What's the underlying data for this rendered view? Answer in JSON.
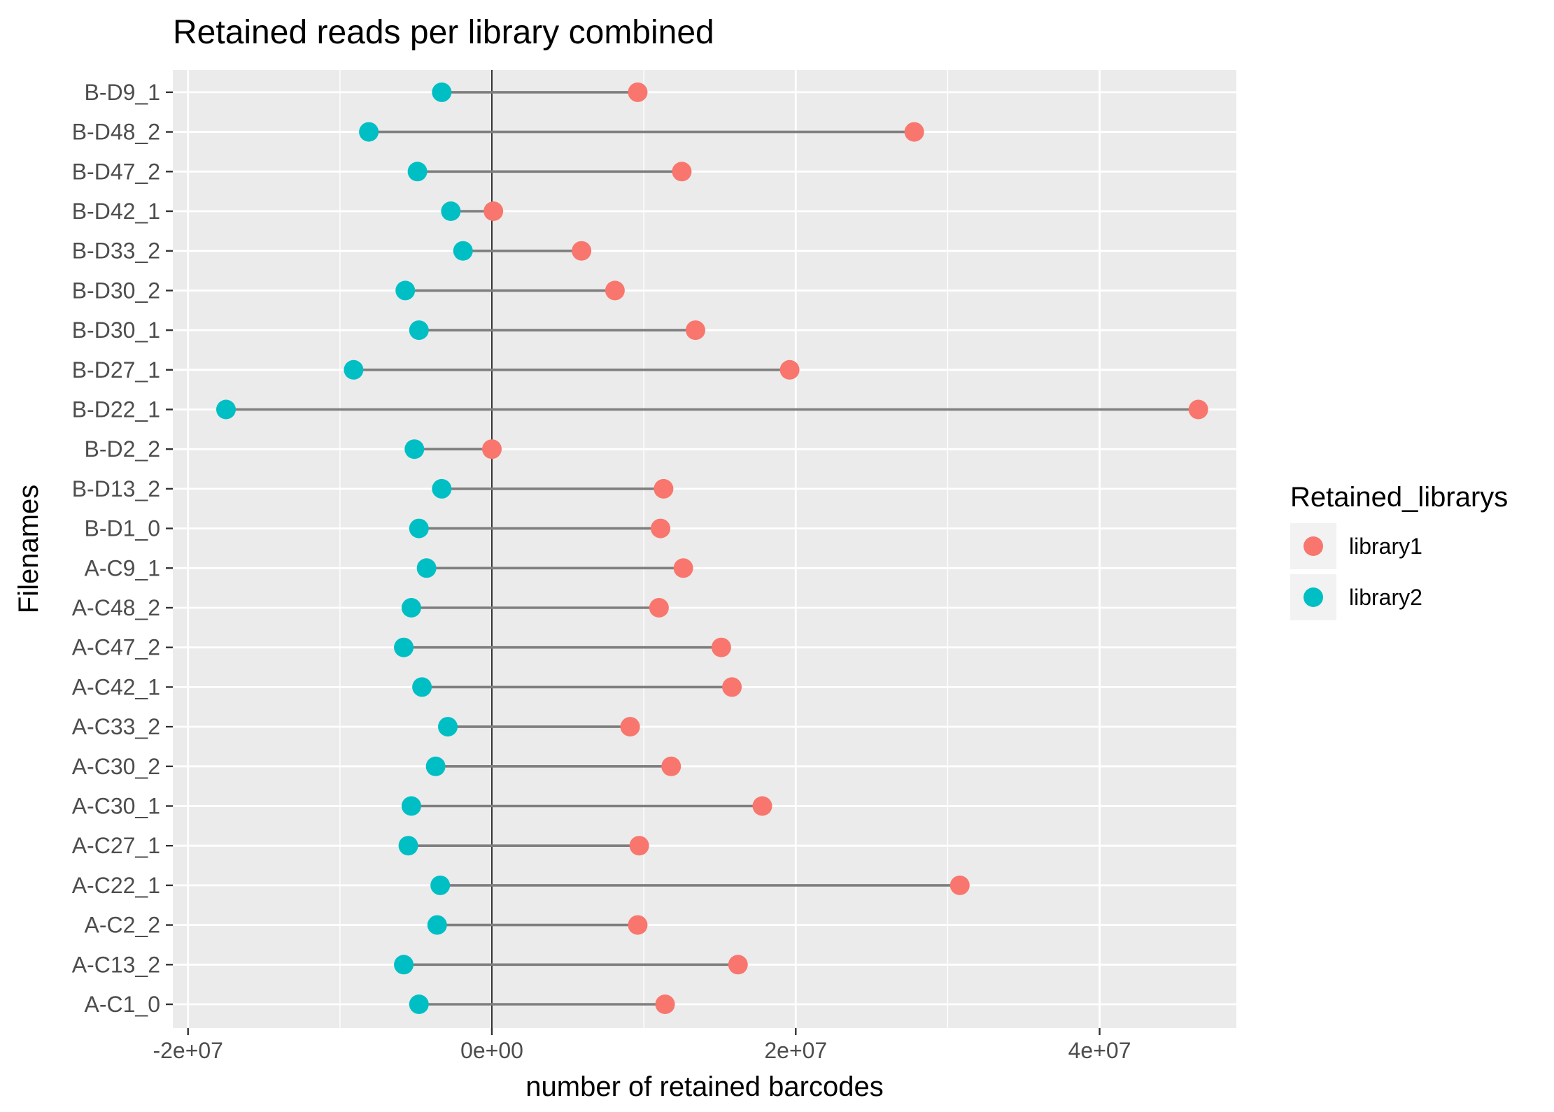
{
  "chart_data": {
    "type": "dumbbell",
    "title": "Retained reads per library combined",
    "xlabel": "number of retained barcodes",
    "ylabel": "Filenames",
    "xlim": [
      -21000000,
      49000000
    ],
    "x_ticks": [
      -20000000,
      0,
      20000000,
      40000000
    ],
    "x_tick_labels": [
      "-2e+07",
      "0e+00",
      "2e+07",
      "4e+07"
    ],
    "vline_at": 0,
    "grid": true,
    "legend": {
      "title": "Retained_librarys",
      "position": "right",
      "entries": [
        "library1",
        "library2"
      ]
    },
    "colors": {
      "library1": "#F8766D",
      "library2": "#00BFC4",
      "segment": "#7f7f7f",
      "panel": "#EBEBEB",
      "grid": "#FFFFFF"
    },
    "categories": [
      "A-C1_0",
      "A-C13_2",
      "A-C2_2",
      "A-C22_1",
      "A-C27_1",
      "A-C30_1",
      "A-C30_2",
      "A-C33_2",
      "A-C42_1",
      "A-C47_2",
      "A-C48_2",
      "A-C9_1",
      "B-D1_0",
      "B-D13_2",
      "B-D2_2",
      "B-D22_1",
      "B-D27_1",
      "B-D30_1",
      "B-D30_2",
      "B-D33_2",
      "B-D42_1",
      "B-D47_2",
      "B-D48_2",
      "B-D9_1"
    ],
    "series": [
      {
        "name": "library1",
        "values": [
          11400000,
          16200000,
          9600000,
          30800000,
          9700000,
          17800000,
          11800000,
          9100000,
          15800000,
          15100000,
          11000000,
          12600000,
          11100000,
          11300000,
          0,
          46500000,
          19600000,
          13400000,
          8100000,
          5900000,
          100000,
          12500000,
          27800000,
          9600000
        ]
      },
      {
        "name": "library2",
        "values": [
          -4800000,
          -5800000,
          -3600000,
          -3400000,
          -5500000,
          -5300000,
          -3700000,
          -2900000,
          -4600000,
          -5800000,
          -5300000,
          -4300000,
          -4800000,
          -3300000,
          -5100000,
          -17500000,
          -9100000,
          -4800000,
          -5700000,
          -1900000,
          -2700000,
          -4900000,
          -8100000,
          -3300000
        ]
      }
    ]
  }
}
